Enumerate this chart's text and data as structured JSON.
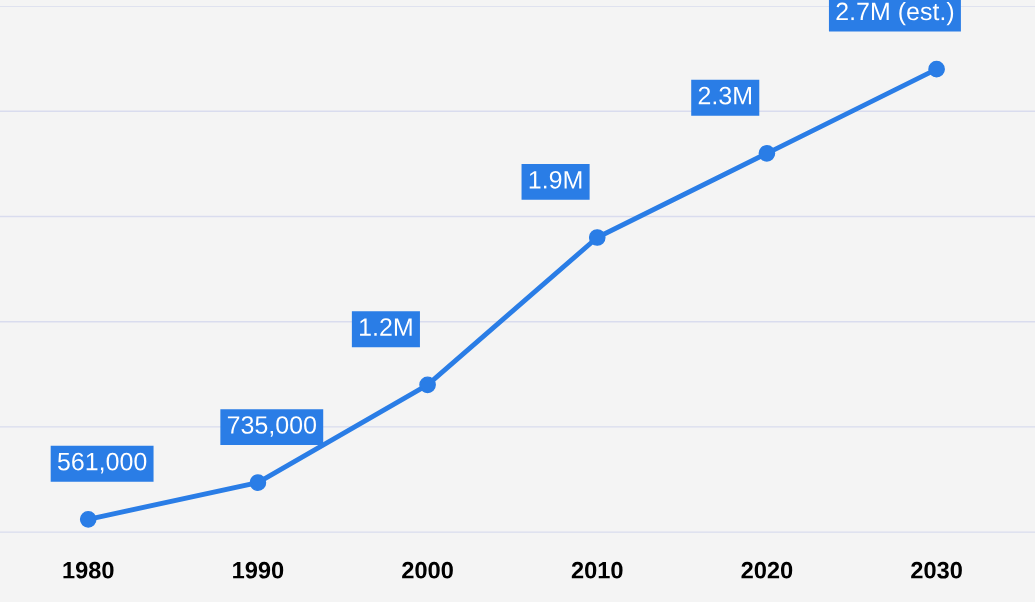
{
  "chart_data": {
    "type": "line",
    "categories": [
      "1980",
      "1990",
      "2000",
      "2010",
      "2020",
      "2030"
    ],
    "series": [
      {
        "color": "#2a7de6",
        "values": [
          561000,
          735000,
          1200000,
          1900000,
          2300000,
          2700000
        ],
        "value_labels": [
          "561,000",
          "735,000",
          "1.2M",
          "1.9M",
          "2.3M",
          "2.7M (est.)"
        ]
      }
    ],
    "yticks": [
      {
        "value": 500000,
        "label": null
      },
      {
        "value": 1000000,
        "label": null
      },
      {
        "value": 1500000,
        "label": null
      },
      {
        "value": 2000000,
        "label": null
      },
      {
        "value": 2500000,
        "label": null
      },
      {
        "value": 3000000,
        "label": null
      }
    ],
    "tick_labels": "x",
    "grid": "y",
    "marker": "circle",
    "line_style": "solid"
  }
}
